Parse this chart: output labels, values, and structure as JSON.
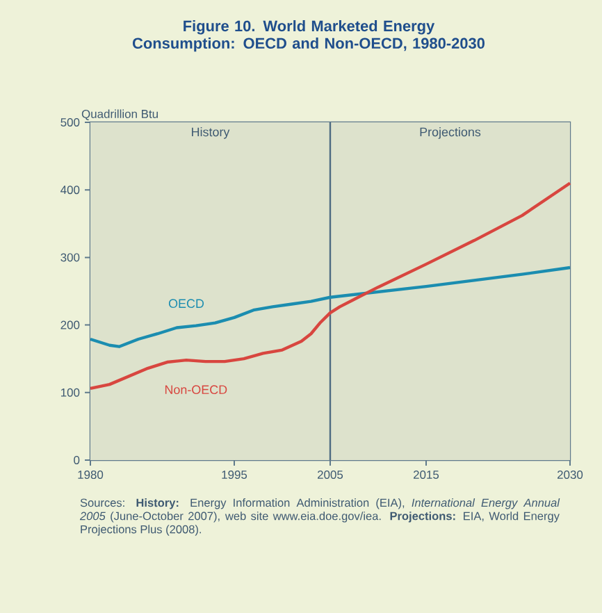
{
  "chart_data": {
    "type": "line",
    "title": "Figure 10.  World Marketed Energy Consumption: OECD and Non-OECD, 1980-2030",
    "ylabel": "Quadrillion Btu",
    "xlim": [
      1980,
      2030
    ],
    "xticks": [
      1980,
      1995,
      2005,
      2015,
      2030
    ],
    "ylim": [
      0,
      500
    ],
    "yticks": [
      0,
      100,
      200,
      300,
      400,
      500
    ],
    "legend": false,
    "marker": "none",
    "line_style": "solid",
    "series": [
      {
        "name": "OECD",
        "color": "#1b8db0",
        "x": [
          1980,
          1982,
          1983,
          1985,
          1987,
          1989,
          1991,
          1993,
          1995,
          1997,
          1999,
          2001,
          2003,
          2005,
          2010,
          2015,
          2020,
          2025,
          2030
        ],
        "values": [
          179,
          170,
          168,
          179,
          187,
          196,
          199,
          203,
          211,
          222,
          227,
          231,
          235,
          241,
          249,
          257,
          266,
          275,
          285
        ]
      },
      {
        "name": "Non-OECD",
        "color": "#d8463f",
        "x": [
          1980,
          1982,
          1984,
          1986,
          1988,
          1990,
          1992,
          1994,
          1996,
          1998,
          2000,
          2002,
          2003,
          2004,
          2005,
          2006,
          2010,
          2015,
          2020,
          2025,
          2030
        ],
        "values": [
          106,
          112,
          124,
          136,
          145,
          148,
          146,
          146,
          150,
          158,
          163,
          176,
          187,
          204,
          218,
          227,
          256,
          290,
          325,
          362,
          410
        ]
      }
    ],
    "ref_lines": [
      {
        "axis": "x",
        "value": 2005,
        "color": "#4d6b82"
      }
    ],
    "bands": [
      {
        "axis": "x",
        "from": 1980,
        "to": 2005,
        "label": "History",
        "color": "#dde2cc"
      },
      {
        "axis": "x",
        "from": 2005,
        "to": 2030,
        "label": "Projections",
        "color": "#dde2cc"
      }
    ],
    "annotations": [
      "Sources: **History:** Energy Information Administration (EIA), *International Energy Annual 2005* (June-October 2007), web site www.eia.doe.gov/iea. **Projections:** EIA, World Energy Projections Plus (2008)."
    ]
  }
}
